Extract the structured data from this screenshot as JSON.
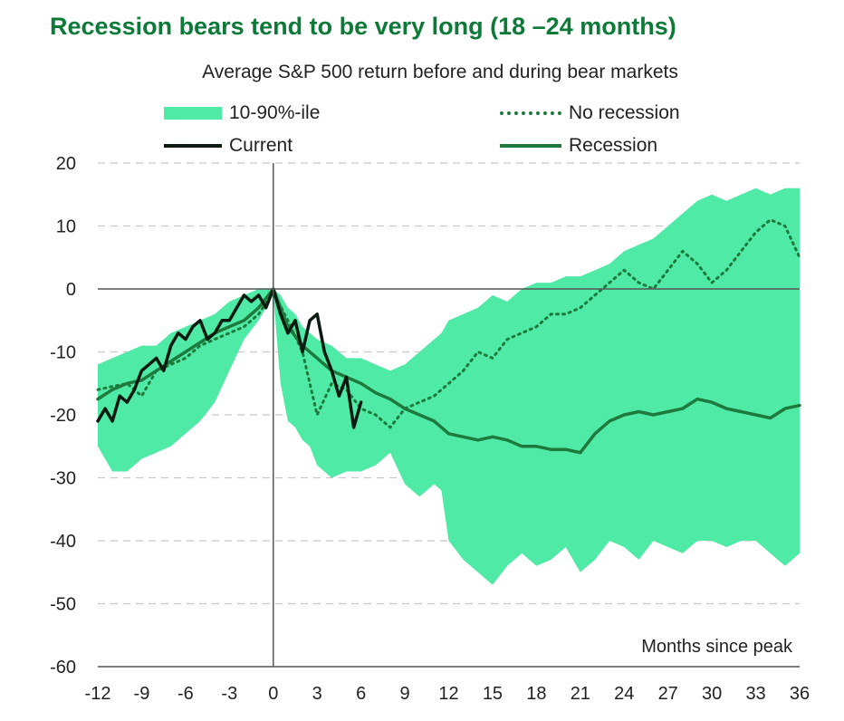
{
  "chart_data": {
    "type": "area",
    "title": "Recession bears tend to be very long (18 –24 months)",
    "subtitle": "Average S&P 500 return before and during bear markets",
    "xlabel": "Months since peak",
    "ylabel": "",
    "xlim": [
      -12,
      36
    ],
    "ylim": [
      -60,
      20
    ],
    "x_ticks": [
      "-12",
      "-9",
      "-6",
      "-3",
      "0",
      "3",
      "6",
      "9",
      "12",
      "15",
      "18",
      "21",
      "24",
      "27",
      "30",
      "33",
      "36"
    ],
    "y_ticks": [
      "20",
      "10",
      "0",
      "-10",
      "-20",
      "-30",
      "-40",
      "-50",
      "-60"
    ],
    "grid": "horizontal dashed",
    "legend": [
      {
        "label": "10-90%-ile",
        "style": "band"
      },
      {
        "label": "No recession",
        "style": "dotted"
      },
      {
        "label": "Current",
        "style": "solid-dark"
      },
      {
        "label": "Recession",
        "style": "solid"
      }
    ],
    "colors": {
      "band": "#4eeaa6",
      "recession": "#1e7a3c",
      "no_recession": "#1e7a3c",
      "current": "#0b1a10",
      "title": "#0e7a3a",
      "grid": "#c8c8c8"
    },
    "band": {
      "name": "10-90%-ile",
      "x": [
        -12,
        -11,
        -10,
        -9,
        -8,
        -7,
        -6,
        -5,
        -4,
        -3,
        -2,
        -1,
        0,
        0.5,
        1,
        1.5,
        2,
        2.5,
        3,
        4,
        5,
        6,
        7,
        8,
        9,
        10,
        11,
        11.5,
        12,
        13,
        14,
        15,
        16,
        17,
        18,
        19,
        20,
        21,
        22,
        23,
        24,
        25,
        26,
        27,
        28,
        29,
        30,
        31,
        32,
        33,
        34,
        35,
        36
      ],
      "upper": [
        -12,
        -11,
        -10,
        -9,
        -9,
        -7,
        -6,
        -5,
        -4,
        -2,
        -1,
        0,
        0,
        -1,
        -3,
        -4,
        -6,
        -7,
        -8,
        -9,
        -11,
        -11,
        -12,
        -13,
        -12,
        -10,
        -8,
        -7,
        -5,
        -4,
        -3,
        -1,
        -2,
        0,
        1,
        1,
        2,
        2,
        3,
        4,
        6,
        7,
        8,
        10,
        12,
        14,
        15,
        14,
        15,
        16,
        15,
        16,
        16
      ],
      "lower": [
        -25,
        -29,
        -29,
        -27,
        -26,
        -25,
        -23,
        -21,
        -18,
        -13,
        -8,
        -5,
        -1,
        -15,
        -21,
        -22,
        -24,
        -25,
        -28,
        -30,
        -29,
        -29,
        -28,
        -26,
        -31,
        -33,
        -31,
        -32,
        -40,
        -43,
        -45,
        -47,
        -44,
        -42,
        -44,
        -43,
        -41,
        -45,
        -43,
        -40,
        -41,
        -43,
        -40,
        -41,
        -42,
        -40,
        -40,
        -41,
        -40,
        -40,
        -42,
        -44,
        -42
      ]
    },
    "series": [
      {
        "name": "Recession",
        "style": "solid",
        "x": [
          -12,
          -11,
          -10,
          -9,
          -8,
          -7,
          -6,
          -5,
          -4,
          -3,
          -2,
          -1,
          0,
          1,
          2,
          3,
          4,
          5,
          6,
          7,
          8,
          9,
          10,
          11,
          12,
          13,
          14,
          15,
          16,
          17,
          18,
          19,
          20,
          21,
          22,
          23,
          24,
          25,
          26,
          27,
          28,
          29,
          30,
          31,
          32,
          33,
          34,
          35,
          36
        ],
        "values": [
          -17.5,
          -16,
          -15,
          -14.5,
          -13,
          -11.5,
          -10,
          -8.5,
          -7,
          -6,
          -5,
          -3,
          0,
          -6,
          -9,
          -11,
          -13,
          -14,
          -15,
          -16.5,
          -17.5,
          -19,
          -20,
          -21,
          -23,
          -23.5,
          -24,
          -23.5,
          -24,
          -25,
          -25,
          -25.5,
          -25.5,
          -26,
          -23,
          -21,
          -20,
          -19.5,
          -20,
          -19.5,
          -19,
          -17.5,
          -18,
          -19,
          -19.5,
          -20,
          -20.5,
          -19,
          -18.5
        ]
      },
      {
        "name": "No recession",
        "style": "dotted",
        "x": [
          -12,
          -11,
          -10,
          -9,
          -8,
          -7,
          -6,
          -5,
          -4,
          -3,
          -2,
          -1,
          0,
          1,
          2,
          3,
          4,
          5,
          6,
          7,
          8,
          9,
          10,
          11,
          12,
          13,
          14,
          15,
          16,
          17,
          18,
          19,
          20,
          21,
          22,
          23,
          24,
          25,
          26,
          27,
          28,
          29,
          30,
          31,
          32,
          33,
          34,
          35,
          36
        ],
        "values": [
          -16,
          -15.5,
          -15,
          -17,
          -13,
          -12,
          -11,
          -9,
          -8,
          -7,
          -6,
          -4,
          -0.5,
          -5,
          -10,
          -20,
          -15,
          -16,
          -19,
          -20,
          -22,
          -19,
          -18,
          -17,
          -15,
          -13,
          -10,
          -11,
          -8,
          -7,
          -6,
          -4,
          -4,
          -3,
          -1,
          1,
          3,
          1,
          0,
          3,
          6,
          4,
          1,
          3,
          6,
          9,
          11,
          10,
          5
        ]
      },
      {
        "name": "Current",
        "style": "solid-dark",
        "x": [
          -12,
          -11.5,
          -11,
          -10.5,
          -10,
          -9.5,
          -9,
          -8.5,
          -8,
          -7.5,
          -7,
          -6.5,
          -6,
          -5.5,
          -5,
          -4.5,
          -4,
          -3.5,
          -3,
          -2.5,
          -2,
          -1.5,
          -1,
          -0.5,
          0,
          0.5,
          1,
          1.5,
          2,
          2.5,
          3,
          3.5,
          4,
          4.5,
          5,
          5.5,
          6
        ],
        "values": [
          -21,
          -19,
          -21,
          -17,
          -18,
          -16,
          -13,
          -12,
          -11,
          -13,
          -9,
          -7,
          -8,
          -6,
          -5,
          -8,
          -7,
          -5,
          -5,
          -3,
          -1,
          -2,
          -1,
          -3,
          0,
          -4,
          -7,
          -5,
          -10,
          -5,
          -4,
          -10,
          -13,
          -17,
          -14,
          -22,
          -18
        ]
      }
    ]
  }
}
